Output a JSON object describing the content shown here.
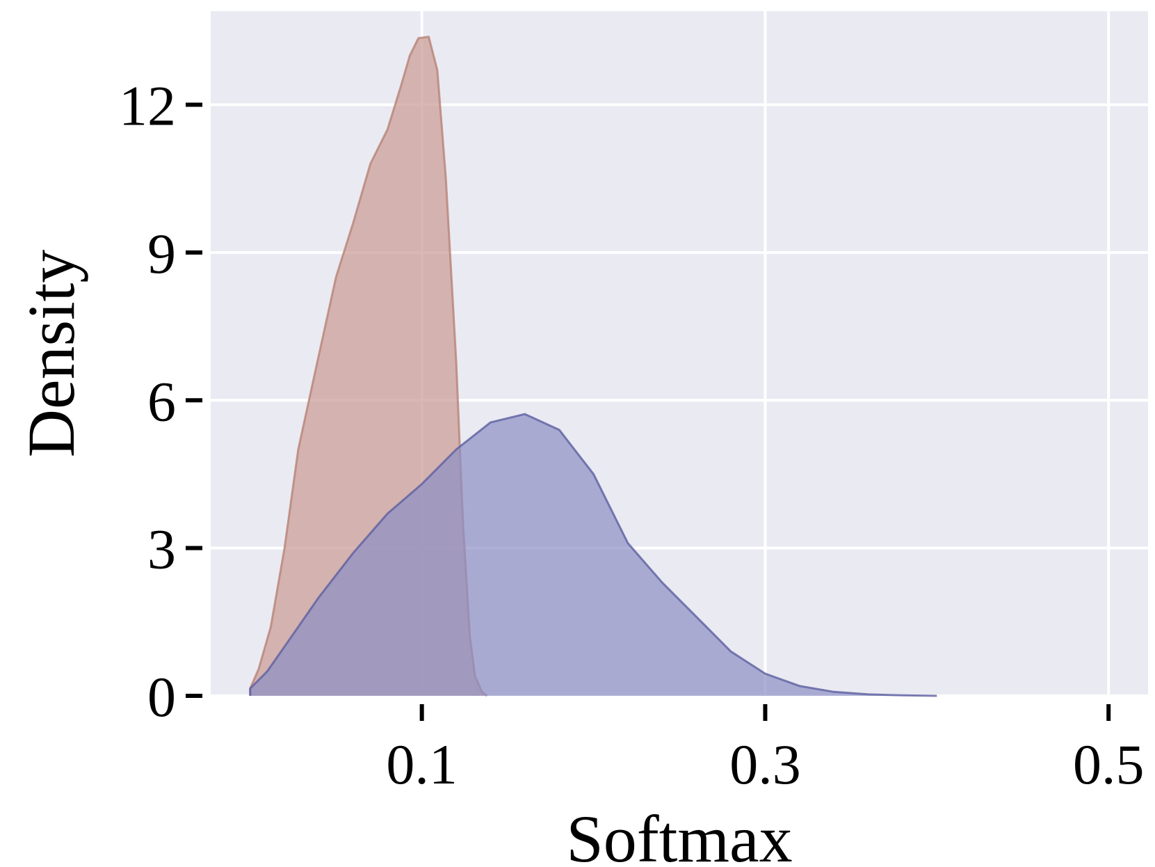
{
  "chart_data": {
    "type": "area",
    "title": "",
    "xlabel": "Softmax",
    "ylabel": "Density",
    "xlim": [
      -0.023,
      0.523
    ],
    "ylim": [
      0,
      13.9
    ],
    "xticks": [
      0.1,
      0.3,
      0.5
    ],
    "xtick_labels": [
      "0.1",
      "0.3",
      "0.5"
    ],
    "yticks": [
      0,
      3,
      6,
      9,
      12
    ],
    "ytick_labels": [
      "0",
      "3",
      "6",
      "9",
      "12"
    ],
    "grid": true,
    "legend": "none",
    "background_color": "#eaeaf2",
    "grid_color": "#ffffff",
    "series": [
      {
        "fill_color": "#c99a93",
        "line_color": "#b88277",
        "points": [
          [
            0.0,
            0.0
          ],
          [
            0.0,
            0.15
          ],
          [
            0.005,
            0.55
          ],
          [
            0.012,
            1.4
          ],
          [
            0.02,
            3.0
          ],
          [
            0.028,
            5.0
          ],
          [
            0.038,
            6.6
          ],
          [
            0.05,
            8.5
          ],
          [
            0.06,
            9.6
          ],
          [
            0.07,
            10.8
          ],
          [
            0.08,
            11.5
          ],
          [
            0.088,
            12.4
          ],
          [
            0.093,
            13.0
          ],
          [
            0.098,
            13.35
          ],
          [
            0.104,
            13.38
          ],
          [
            0.109,
            12.7
          ],
          [
            0.114,
            10.5
          ],
          [
            0.12,
            6.8
          ],
          [
            0.124,
            3.5
          ],
          [
            0.128,
            1.2
          ],
          [
            0.131,
            0.4
          ],
          [
            0.135,
            0.08
          ],
          [
            0.138,
            0.0
          ]
        ]
      },
      {
        "fill_color": "#8c8ec4",
        "line_color": "#5d5fa0",
        "points": [
          [
            0.0,
            0.0
          ],
          [
            0.0,
            0.15
          ],
          [
            0.01,
            0.5
          ],
          [
            0.02,
            1.0
          ],
          [
            0.04,
            2.0
          ],
          [
            0.06,
            2.9
          ],
          [
            0.08,
            3.7
          ],
          [
            0.1,
            4.3
          ],
          [
            0.12,
            5.0
          ],
          [
            0.14,
            5.55
          ],
          [
            0.16,
            5.72
          ],
          [
            0.18,
            5.4
          ],
          [
            0.2,
            4.5
          ],
          [
            0.22,
            3.1
          ],
          [
            0.24,
            2.3
          ],
          [
            0.26,
            1.6
          ],
          [
            0.28,
            0.9
          ],
          [
            0.3,
            0.45
          ],
          [
            0.32,
            0.2
          ],
          [
            0.34,
            0.08
          ],
          [
            0.36,
            0.03
          ],
          [
            0.38,
            0.01
          ],
          [
            0.4,
            0.0
          ]
        ]
      }
    ]
  }
}
